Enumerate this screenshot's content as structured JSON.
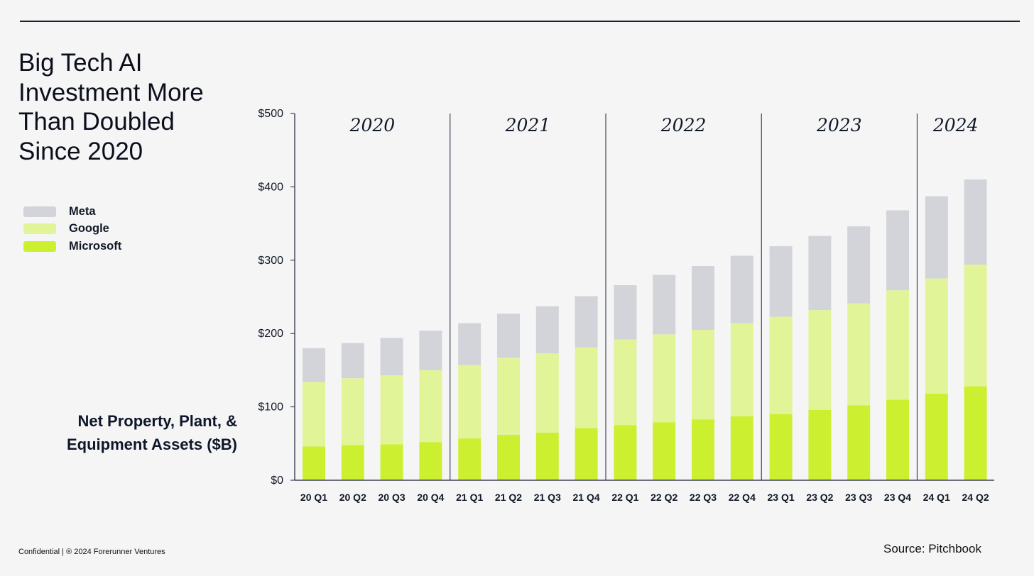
{
  "title_lines": [
    "Big Tech AI",
    "Investment More",
    "Than Doubled",
    "Since 2020"
  ],
  "unit_label_lines": [
    "Net Property, Plant, &",
    "Equipment Assets ($B)"
  ],
  "footer": {
    "left": "Confidential | ® 2024 Forerunner Ventures",
    "right": "Source: Pitchbook"
  },
  "colors": {
    "meta": "#d3d4d9",
    "google": "#e1f498",
    "microsoft": "#ccf030",
    "axis": "#1c2236"
  },
  "chart_data": {
    "type": "bar",
    "stacked": true,
    "categories": [
      "20 Q1",
      "20 Q2",
      "20 Q3",
      "20 Q4",
      "21 Q1",
      "21 Q2",
      "21 Q3",
      "21 Q4",
      "22 Q1",
      "22 Q2",
      "22 Q3",
      "22 Q4",
      "23 Q1",
      "23 Q2",
      "23 Q3",
      "23 Q4",
      "24 Q1",
      "24 Q2"
    ],
    "year_groups": [
      {
        "label": "2020",
        "count": 4
      },
      {
        "label": "2021",
        "count": 4
      },
      {
        "label": "2022",
        "count": 4
      },
      {
        "label": "2023",
        "count": 4
      },
      {
        "label": "2024",
        "count": 2
      }
    ],
    "series": [
      {
        "name": "Microsoft",
        "color": "#ccf030",
        "values": [
          46,
          48,
          49,
          52,
          57,
          62,
          65,
          71,
          75,
          79,
          83,
          87,
          90,
          96,
          102,
          110,
          118,
          128
        ]
      },
      {
        "name": "Google",
        "color": "#e1f498",
        "values": [
          88,
          91,
          94,
          98,
          100,
          105,
          108,
          110,
          117,
          120,
          122,
          127,
          133,
          136,
          139,
          149,
          157,
          166
        ]
      },
      {
        "name": "Meta",
        "color": "#d3d4d9",
        "values": [
          46,
          48,
          51,
          54,
          57,
          60,
          64,
          70,
          74,
          81,
          87,
          92,
          96,
          101,
          105,
          109,
          112,
          116
        ]
      }
    ],
    "legend_order": [
      "Meta",
      "Google",
      "Microsoft"
    ],
    "y_ticks": [
      "$0",
      "$100",
      "$200",
      "$300",
      "$400",
      "$500"
    ],
    "ylim": [
      0,
      500
    ],
    "legend_position": "left",
    "grid": false
  }
}
